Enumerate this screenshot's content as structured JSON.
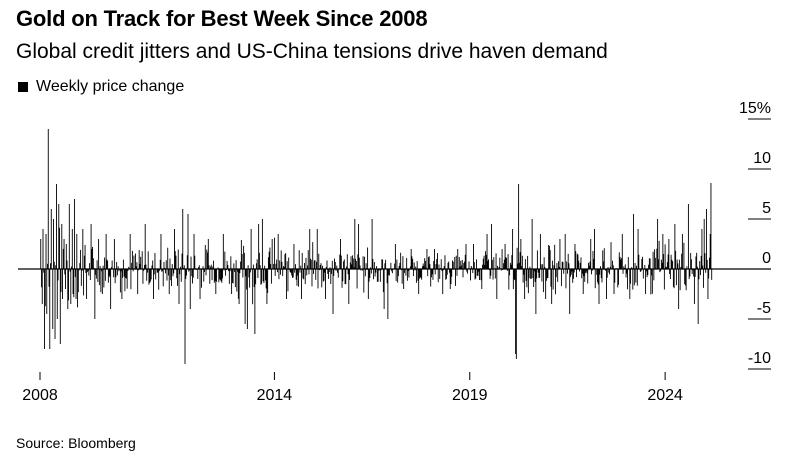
{
  "title": "Gold on Track for Best Week Since 2008",
  "subtitle": "Global credit jitters and US-China tensions drive haven demand",
  "legend": {
    "label": "Weekly price change",
    "color": "#000000"
  },
  "source": "Source: Bloomberg",
  "chart_data": {
    "type": "bar",
    "series_name": "Weekly price change",
    "unit": "%",
    "x_range": [
      2008.0,
      2025.2
    ],
    "ylim": [
      -10,
      15
    ],
    "y_ticks": [
      15,
      10,
      5,
      0,
      -5,
      -10
    ],
    "y_tick_labels": [
      "15%",
      "10",
      "5",
      "0",
      "-5",
      "-10"
    ],
    "x_ticks": [
      2008,
      2014,
      2019,
      2024
    ],
    "x_tick_labels": [
      "2008",
      "2014",
      "2019",
      "2024"
    ],
    "grid": false,
    "y_axis_side": "right",
    "points": [
      {
        "t": 2008.02,
        "v": 3.0
      },
      {
        "t": 2008.05,
        "v": -3.5
      },
      {
        "t": 2008.08,
        "v": 4.0
      },
      {
        "t": 2008.12,
        "v": -8.0
      },
      {
        "t": 2008.15,
        "v": 3.5
      },
      {
        "t": 2008.18,
        "v": -4.5
      },
      {
        "t": 2008.22,
        "v": 14.0
      },
      {
        "t": 2008.25,
        "v": -8.0
      },
      {
        "t": 2008.28,
        "v": 6.0
      },
      {
        "t": 2008.32,
        "v": -6.0
      },
      {
        "t": 2008.35,
        "v": 5.0
      },
      {
        "t": 2008.38,
        "v": -7.0
      },
      {
        "t": 2008.42,
        "v": 8.5
      },
      {
        "t": 2008.45,
        "v": -5.0
      },
      {
        "t": 2008.48,
        "v": 6.5
      },
      {
        "t": 2008.52,
        "v": -7.5
      },
      {
        "t": 2008.55,
        "v": 4.5
      },
      {
        "t": 2008.58,
        "v": -3.0
      },
      {
        "t": 2008.62,
        "v": 3.0
      },
      {
        "t": 2008.65,
        "v": -2.0
      },
      {
        "t": 2008.68,
        "v": 2.5
      },
      {
        "t": 2008.72,
        "v": -4.0
      },
      {
        "t": 2008.75,
        "v": 6.5
      },
      {
        "t": 2008.78,
        "v": -3.5
      },
      {
        "t": 2008.82,
        "v": 4.0
      },
      {
        "t": 2008.85,
        "v": -2.5
      },
      {
        "t": 2008.88,
        "v": 7.0
      },
      {
        "t": 2008.92,
        "v": -3.0
      },
      {
        "t": 2008.95,
        "v": 3.5
      },
      {
        "t": 2009.1,
        "v": 4.0
      },
      {
        "t": 2009.2,
        "v": -3.0
      },
      {
        "t": 2009.3,
        "v": 4.5
      },
      {
        "t": 2009.4,
        "v": -5.0
      },
      {
        "t": 2009.5,
        "v": 3.0
      },
      {
        "t": 2009.6,
        "v": -2.5
      },
      {
        "t": 2009.7,
        "v": 3.5
      },
      {
        "t": 2009.8,
        "v": -4.0
      },
      {
        "t": 2009.9,
        "v": 3.0
      },
      {
        "t": 2010.1,
        "v": -3.0
      },
      {
        "t": 2010.3,
        "v": 3.5
      },
      {
        "t": 2010.5,
        "v": -2.5
      },
      {
        "t": 2010.7,
        "v": 4.5
      },
      {
        "t": 2010.9,
        "v": -3.0
      },
      {
        "t": 2011.1,
        "v": 3.5
      },
      {
        "t": 2011.3,
        "v": -2.5
      },
      {
        "t": 2011.45,
        "v": 4.0
      },
      {
        "t": 2011.55,
        "v": -3.5
      },
      {
        "t": 2011.65,
        "v": 6.0
      },
      {
        "t": 2011.72,
        "v": -9.5
      },
      {
        "t": 2011.78,
        "v": 5.5
      },
      {
        "t": 2011.85,
        "v": -4.0
      },
      {
        "t": 2011.95,
        "v": 3.5
      },
      {
        "t": 2012.1,
        "v": -3.0
      },
      {
        "t": 2012.3,
        "v": 3.0
      },
      {
        "t": 2012.5,
        "v": -2.5
      },
      {
        "t": 2012.7,
        "v": 3.5
      },
      {
        "t": 2012.9,
        "v": -2.5
      },
      {
        "t": 2013.1,
        "v": -3.5
      },
      {
        "t": 2013.25,
        "v": -5.5
      },
      {
        "t": 2013.3,
        "v": -6.0
      },
      {
        "t": 2013.4,
        "v": 4.0
      },
      {
        "t": 2013.5,
        "v": -6.5
      },
      {
        "t": 2013.6,
        "v": 4.5
      },
      {
        "t": 2013.7,
        "v": 5.0
      },
      {
        "t": 2013.8,
        "v": -3.5
      },
      {
        "t": 2013.95,
        "v": 3.0
      },
      {
        "t": 2014.1,
        "v": 3.5
      },
      {
        "t": 2014.3,
        "v": -3.0
      },
      {
        "t": 2014.5,
        "v": 2.5
      },
      {
        "t": 2014.7,
        "v": -3.0
      },
      {
        "t": 2014.9,
        "v": 4.0
      },
      {
        "t": 2015.1,
        "v": 4.0
      },
      {
        "t": 2015.3,
        "v": -3.0
      },
      {
        "t": 2015.5,
        "v": -4.5
      },
      {
        "t": 2015.7,
        "v": 3.0
      },
      {
        "t": 2015.9,
        "v": -3.5
      },
      {
        "t": 2016.05,
        "v": 5.0
      },
      {
        "t": 2016.15,
        "v": 4.5
      },
      {
        "t": 2016.4,
        "v": -3.0
      },
      {
        "t": 2016.5,
        "v": 5.0
      },
      {
        "t": 2016.8,
        "v": -4.0
      },
      {
        "t": 2016.9,
        "v": -5.0
      },
      {
        "t": 2017.1,
        "v": 2.5
      },
      {
        "t": 2017.3,
        "v": -2.0
      },
      {
        "t": 2017.5,
        "v": 2.0
      },
      {
        "t": 2017.7,
        "v": -2.5
      },
      {
        "t": 2017.9,
        "v": 2.0
      },
      {
        "t": 2018.1,
        "v": 2.0
      },
      {
        "t": 2018.3,
        "v": -2.5
      },
      {
        "t": 2018.5,
        "v": -2.0
      },
      {
        "t": 2018.7,
        "v": 2.0
      },
      {
        "t": 2018.9,
        "v": 2.5
      },
      {
        "t": 2019.1,
        "v": 2.5
      },
      {
        "t": 2019.3,
        "v": -2.0
      },
      {
        "t": 2019.45,
        "v": 3.5
      },
      {
        "t": 2019.55,
        "v": 4.5
      },
      {
        "t": 2019.7,
        "v": -3.0
      },
      {
        "t": 2019.9,
        "v": 2.5
      },
      {
        "t": 2020.1,
        "v": 4.0
      },
      {
        "t": 2020.18,
        "v": -8.5
      },
      {
        "t": 2020.2,
        "v": -9.0
      },
      {
        "t": 2020.25,
        "v": 8.5
      },
      {
        "t": 2020.3,
        "v": 3.0
      },
      {
        "t": 2020.4,
        "v": -3.0
      },
      {
        "t": 2020.6,
        "v": 5.0
      },
      {
        "t": 2020.7,
        "v": -4.5
      },
      {
        "t": 2020.8,
        "v": 3.5
      },
      {
        "t": 2020.95,
        "v": -3.0
      },
      {
        "t": 2021.1,
        "v": -3.5
      },
      {
        "t": 2021.3,
        "v": 3.0
      },
      {
        "t": 2021.45,
        "v": 3.5
      },
      {
        "t": 2021.55,
        "v": -4.5
      },
      {
        "t": 2021.7,
        "v": 2.5
      },
      {
        "t": 2021.9,
        "v": -2.5
      },
      {
        "t": 2022.1,
        "v": 3.0
      },
      {
        "t": 2022.2,
        "v": 4.0
      },
      {
        "t": 2022.3,
        "v": -3.5
      },
      {
        "t": 2022.5,
        "v": -3.0
      },
      {
        "t": 2022.7,
        "v": -2.5
      },
      {
        "t": 2022.9,
        "v": 3.5
      },
      {
        "t": 2023.1,
        "v": -3.0
      },
      {
        "t": 2023.2,
        "v": 5.5
      },
      {
        "t": 2023.3,
        "v": 4.0
      },
      {
        "t": 2023.5,
        "v": -2.5
      },
      {
        "t": 2023.8,
        "v": 5.0
      },
      {
        "t": 2023.95,
        "v": 3.5
      },
      {
        "t": 2024.1,
        "v": 3.0
      },
      {
        "t": 2024.25,
        "v": 4.5
      },
      {
        "t": 2024.35,
        "v": -4.0
      },
      {
        "t": 2024.45,
        "v": 3.5
      },
      {
        "t": 2024.6,
        "v": 6.5
      },
      {
        "t": 2024.75,
        "v": -3.5
      },
      {
        "t": 2024.85,
        "v": -5.5
      },
      {
        "t": 2024.95,
        "v": 4.0
      },
      {
        "t": 2025.0,
        "v": 5.0
      },
      {
        "t": 2025.05,
        "v": 6.0
      },
      {
        "t": 2025.1,
        "v": -3.0
      },
      {
        "t": 2025.15,
        "v": 3.5
      },
      {
        "t": 2025.18,
        "v": 8.6
      }
    ]
  }
}
